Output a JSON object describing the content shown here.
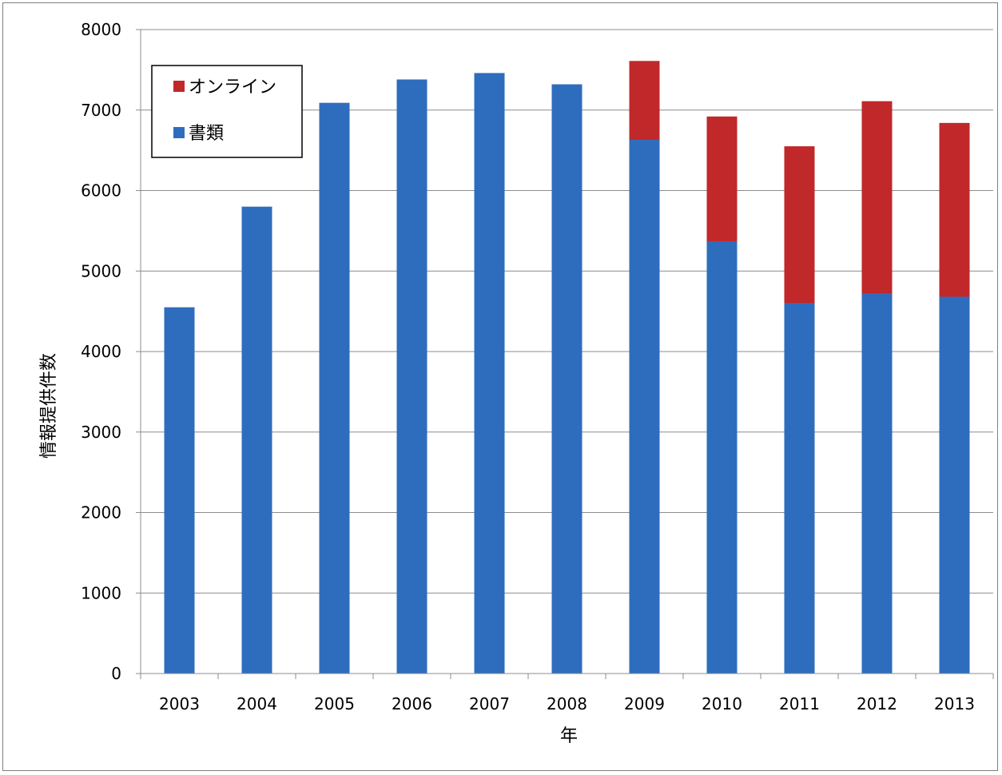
{
  "chart_data": {
    "type": "bar",
    "stacked": true,
    "title": "",
    "xlabel": "年",
    "ylabel": "情報提供件数",
    "categories": [
      "2003",
      "2004",
      "2005",
      "2006",
      "2007",
      "2008",
      "2009",
      "2010",
      "2011",
      "2012",
      "2013"
    ],
    "ylim": [
      0,
      8000
    ],
    "yticks": [
      0,
      1000,
      2000,
      3000,
      4000,
      5000,
      6000,
      7000,
      8000
    ],
    "grid": true,
    "legend_position": "top-left",
    "series": [
      {
        "name": "書類",
        "color": "#2E6DBE",
        "values": [
          4550,
          5800,
          7090,
          7380,
          7460,
          7320,
          6630,
          5370,
          4600,
          4720,
          4680
        ]
      },
      {
        "name": "オンライン",
        "color": "#C0282A",
        "values": [
          0,
          0,
          0,
          0,
          0,
          0,
          980,
          1550,
          1950,
          2390,
          2160
        ]
      }
    ],
    "legend_order": [
      "オンライン",
      "書類"
    ]
  }
}
